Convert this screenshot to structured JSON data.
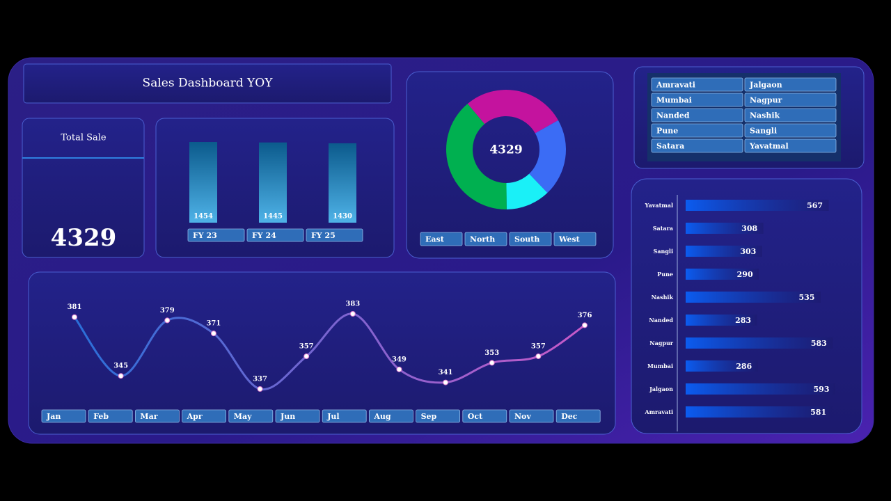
{
  "header": {
    "title": "Sales Dashboard YOY"
  },
  "kpi": {
    "label": "Total Sale",
    "value": 4329
  },
  "slicers": {
    "cities": [
      "Amravati",
      "Jalgaon",
      "Mumbai",
      "Nagpur",
      "Nanded",
      "Nashik",
      "Pune",
      "Sangli",
      "Satara",
      "Yavatmal"
    ]
  },
  "chart_data": [
    {
      "type": "bar",
      "categories": [
        "FY 23",
        "FY 24",
        "FY 25"
      ],
      "values": [
        1454,
        1445,
        1430
      ],
      "color": "#4fb3e8"
    },
    {
      "type": "donut",
      "categories": [
        "East",
        "North",
        "South",
        "West"
      ],
      "values": [
        1210,
        910,
        519,
        1690
      ],
      "colors": [
        "#c4139e",
        "#3b6cf5",
        "#1af0f7",
        "#00b050"
      ],
      "center_value": 4329
    },
    {
      "type": "line",
      "categories": [
        "Jan",
        "Feb",
        "Mar",
        "Apr",
        "May",
        "Jun",
        "Jul",
        "Aug",
        "Sep",
        "Oct",
        "Nov",
        "Dec"
      ],
      "values": [
        381,
        345,
        379,
        371,
        337,
        357,
        383,
        349,
        341,
        353,
        357,
        376
      ],
      "color": "#c85ac8"
    },
    {
      "type": "hbar",
      "categories": [
        "Yavatmal",
        "Satara",
        "Sangli",
        "Pune",
        "Nashik",
        "Nanded",
        "Nagpur",
        "Mumbai",
        "Jalgaon",
        "Amravati"
      ],
      "values": [
        567,
        308,
        303,
        290,
        535,
        283,
        583,
        286,
        593,
        581
      ],
      "color": "#0b5cf0"
    }
  ]
}
